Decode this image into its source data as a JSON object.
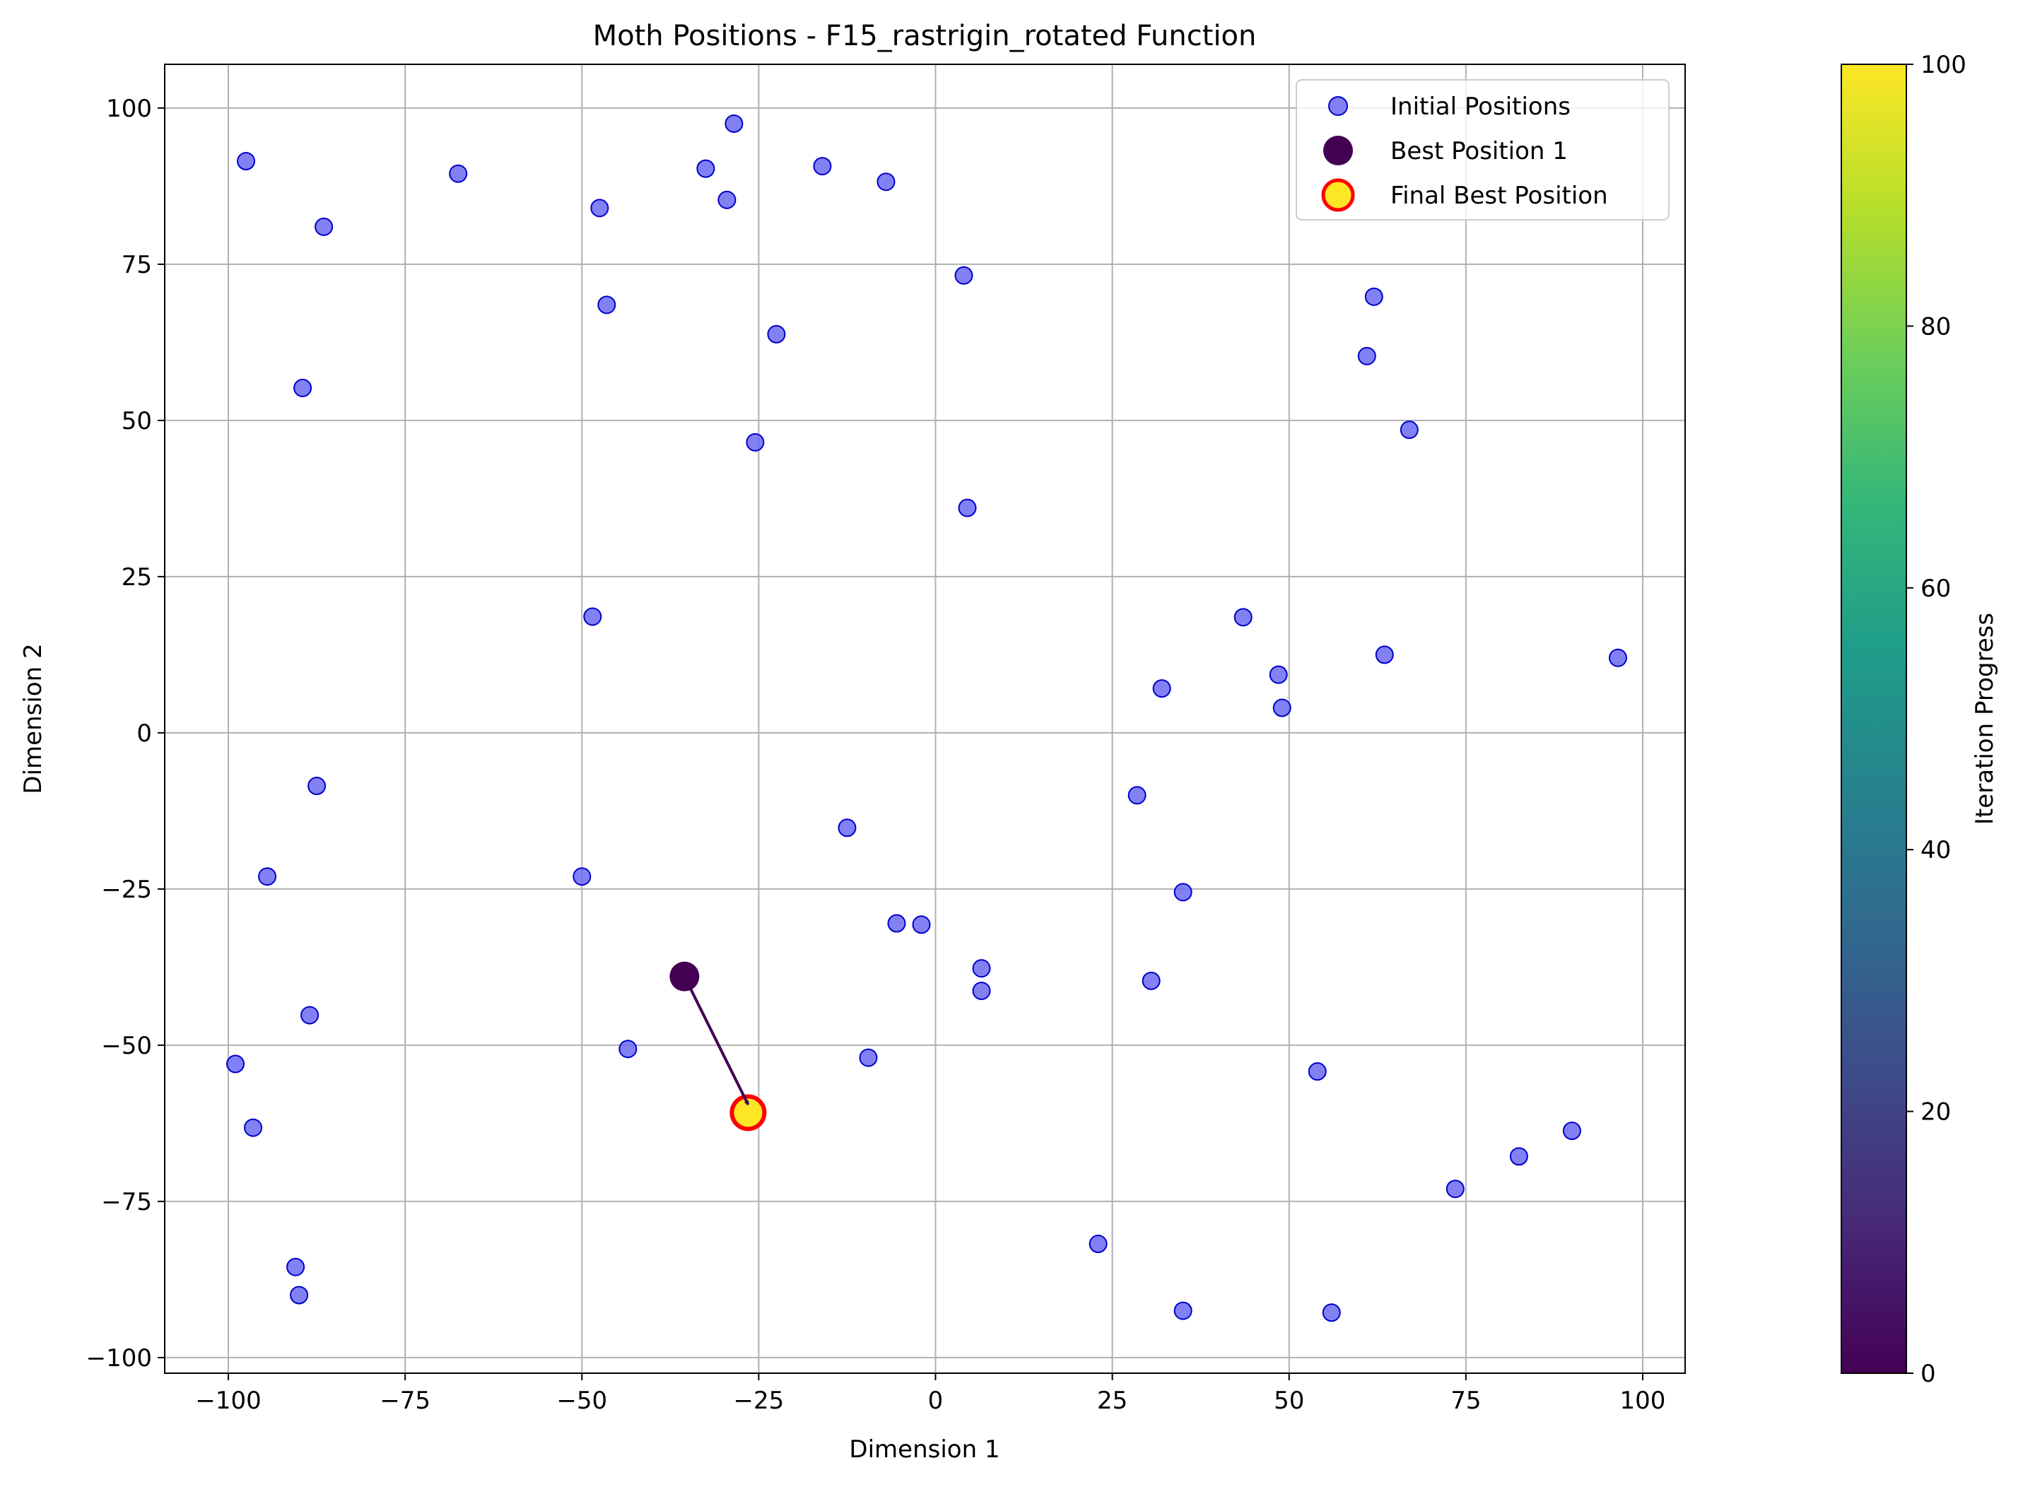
{
  "chart_data": {
    "type": "scatter",
    "title": "Moth Positions - F15_rastrigin_rotated Function",
    "xlabel": "Dimension 1",
    "ylabel": "Dimension 2",
    "xlim": [
      -109,
      106
    ],
    "ylim": [
      -102.5,
      107
    ],
    "xticks": [
      -100,
      -75,
      -50,
      -25,
      0,
      25,
      50,
      75,
      100
    ],
    "yticks": [
      -100,
      -75,
      -50,
      -25,
      0,
      25,
      50,
      75,
      100
    ],
    "xtick_labels": [
      "−100",
      "−75",
      "−50",
      "−25",
      "0",
      "25",
      "50",
      "75",
      "100"
    ],
    "ytick_labels": [
      "−100",
      "−75",
      "−50",
      "−25",
      "0",
      "25",
      "50",
      "75",
      "100"
    ],
    "grid": true,
    "legend_position": "top-right",
    "legend": [
      {
        "label": "Initial Positions",
        "color": "#6b6bf2"
      },
      {
        "label": "Best Position 1",
        "color": "#440154"
      },
      {
        "label": "Final Best Position",
        "color": "#fde725",
        "edge": "#ff0000"
      }
    ],
    "series": [
      {
        "name": "Initial Positions",
        "color": "#6b6bf2",
        "edge": "#0000cc",
        "points": [
          [
            -97.5,
            91.5
          ],
          [
            -86.5,
            81
          ],
          [
            -67.5,
            89.5
          ],
          [
            -47.5,
            84
          ],
          [
            -32.5,
            90.3
          ],
          [
            -28.5,
            97.5
          ],
          [
            -29.5,
            85.3
          ],
          [
            -16,
            90.7
          ],
          [
            -7,
            88.2
          ],
          [
            -46.5,
            68.5
          ],
          [
            -22.5,
            63.8
          ],
          [
            4,
            73.2
          ],
          [
            -89.5,
            55.2
          ],
          [
            -25.5,
            46.5
          ],
          [
            4.5,
            36
          ],
          [
            62,
            69.8
          ],
          [
            61,
            60.3
          ],
          [
            67,
            48.5
          ],
          [
            -48.5,
            18.6
          ],
          [
            43.5,
            18.5
          ],
          [
            48.5,
            9.3
          ],
          [
            49,
            4
          ],
          [
            32,
            7.1
          ],
          [
            63.5,
            12.5
          ],
          [
            96.5,
            12
          ],
          [
            -87.5,
            -8.5
          ],
          [
            -94.5,
            -23
          ],
          [
            -50,
            -23
          ],
          [
            -12.5,
            -15.2
          ],
          [
            28.5,
            -10
          ],
          [
            35,
            -25.5
          ],
          [
            -5.5,
            -30.5
          ],
          [
            -2,
            -30.7
          ],
          [
            6.5,
            -37.7
          ],
          [
            6.5,
            -41.3
          ],
          [
            30.5,
            -39.7
          ],
          [
            -88.5,
            -45.2
          ],
          [
            -99,
            -53
          ],
          [
            -43.5,
            -50.6
          ],
          [
            -9.5,
            -52
          ],
          [
            54,
            -54.2
          ],
          [
            -96.5,
            -63.2
          ],
          [
            90,
            -63.7
          ],
          [
            82.5,
            -67.8
          ],
          [
            73.5,
            -73
          ],
          [
            23,
            -81.8
          ],
          [
            -90.5,
            -85.5
          ],
          [
            -90,
            -90
          ],
          [
            35,
            -92.5
          ],
          [
            56,
            -92.8
          ]
        ]
      },
      {
        "name": "Best Position 1",
        "color": "#440154",
        "points": [
          [
            -35.5,
            -39
          ]
        ]
      },
      {
        "name": "Final Best Position",
        "color": "#fde725",
        "edge": "#ff0000",
        "points": [
          [
            -26.5,
            -60.8
          ]
        ]
      }
    ],
    "annotations": [
      {
        "type": "arrow",
        "from": [
          -35.5,
          -39
        ],
        "to": [
          -26.5,
          -59.5
        ],
        "color": "#440154"
      }
    ],
    "colorbar": {
      "label": "Iteration Progress",
      "colormap": "viridis",
      "range": [
        0,
        100
      ],
      "ticks": [
        0,
        20,
        40,
        60,
        80,
        100
      ],
      "tick_labels": [
        "0",
        "20",
        "40",
        "60",
        "80",
        "100"
      ],
      "colors": [
        "#440154",
        "#482878",
        "#3e4a89",
        "#31688e",
        "#26828e",
        "#1f9e89",
        "#35b779",
        "#6ece58",
        "#b5de2b",
        "#fde725"
      ]
    }
  }
}
